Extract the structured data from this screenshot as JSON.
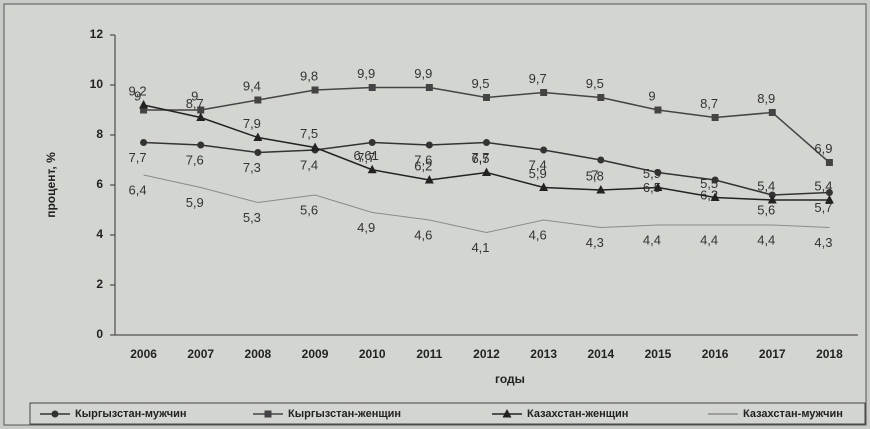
{
  "chart_data": {
    "type": "line",
    "x_label": "годы",
    "y_label": "процент, %",
    "categories": [
      "2006",
      "2007",
      "2008",
      "2009",
      "2010",
      "2011",
      "2012",
      "2013",
      "2014",
      "2015",
      "2016",
      "2017",
      "2018"
    ],
    "ylim": [
      0,
      12
    ],
    "yticks": [
      0,
      2,
      4,
      6,
      8,
      10,
      12
    ],
    "series": [
      {
        "name": "Кыргызстан-мужчин",
        "color": "#333333",
        "marker": "circle",
        "values": [
          7.7,
          7.6,
          7.3,
          7.4,
          7.7,
          7.6,
          7.7,
          7.4,
          7,
          6.5,
          6.2,
          5.6,
          5.7
        ],
        "value_labels": [
          "7,7",
          "7,6",
          "7,3",
          "7,4",
          "7,7",
          "7,6",
          "7,7",
          "7,4",
          "7",
          "6,5",
          "6,2",
          "5,6",
          "5,7"
        ]
      },
      {
        "name": "Кыргызстан-женщин",
        "color": "#444444",
        "marker": "square",
        "values": [
          9,
          9,
          9.4,
          9.8,
          9.9,
          9.9,
          9.5,
          9.7,
          9.5,
          9,
          8.7,
          8.9,
          6.9
        ],
        "value_labels": [
          "9",
          "9",
          "9,4",
          "9,8",
          "9,9",
          "9,9",
          "9,5",
          "9,7",
          "9,5",
          "9",
          "8,7",
          "8,9",
          "6,9"
        ]
      },
      {
        "name": "Казахстан-женщин",
        "color": "#222222",
        "marker": "triangle",
        "values": [
          9.2,
          8.7,
          7.9,
          7.5,
          6.61,
          6.2,
          6.5,
          5.9,
          5.8,
          5.9,
          5.5,
          5.4,
          5.4
        ],
        "value_labels": [
          "9,2",
          "8,7",
          "7,9",
          "7,5",
          "6,61",
          "6,2",
          "6,5",
          "5,9",
          "5,8",
          "5,9",
          "5,5",
          "5,4",
          "5,4"
        ]
      },
      {
        "name": "Казахстан-мужчин",
        "color": "#8a8a8a",
        "marker": "none",
        "values": [
          6.4,
          5.9,
          5.3,
          5.6,
          4.9,
          4.6,
          4.1,
          4.6,
          4.3,
          4.4,
          4.4,
          4.4,
          4.3
        ],
        "value_labels": [
          "6,4",
          "5,9",
          "5,3",
          "5,6",
          "4,9",
          "4,6",
          "4,1",
          "4,6",
          "4,3",
          "4,4",
          "4,4",
          "4,4",
          "4,3"
        ]
      }
    ]
  }
}
